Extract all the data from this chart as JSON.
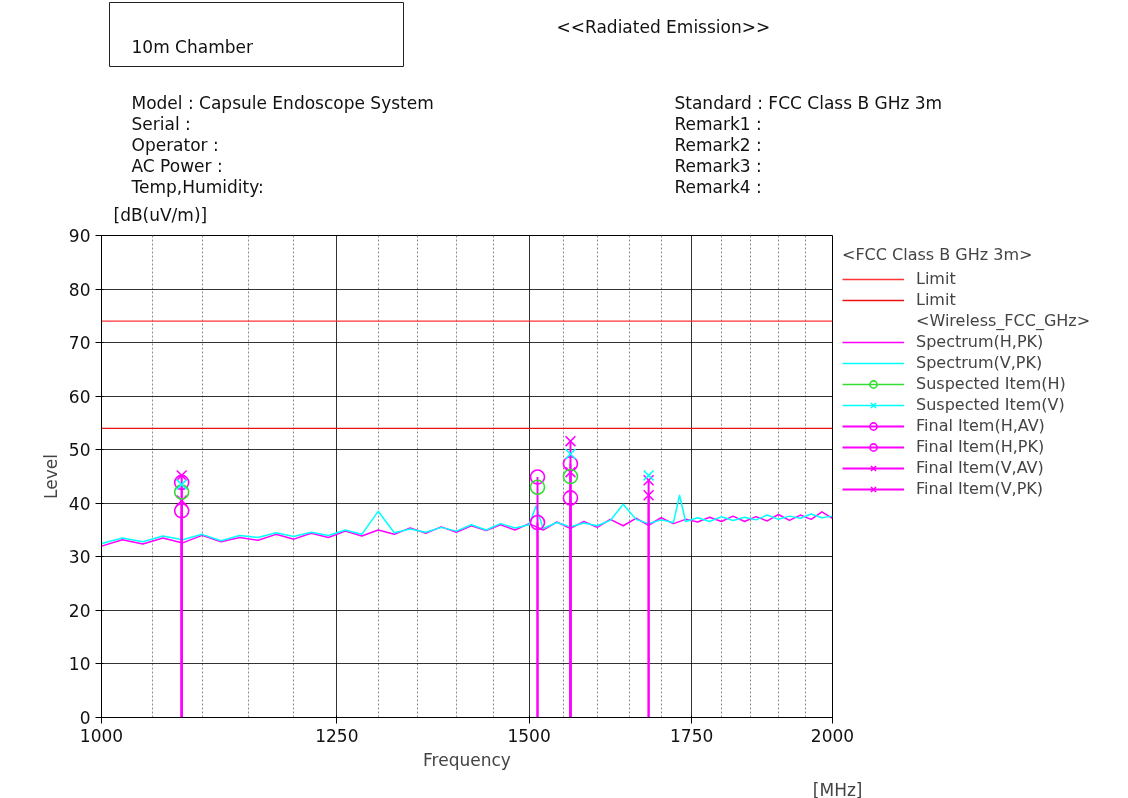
{
  "chart_data": {
    "type": "line",
    "title": "<<Radiated Emission>>",
    "xlabel": "Frequency",
    "ylabel": "Level",
    "legend_title": "<FCC Class B GHz 3m>",
    "annotations": [
      "10m Chamber",
      "Model        : Capsule Endoscope System",
      "Serial         :",
      "Operator      :",
      "AC Power     :",
      "Temp,Humidity:",
      "Standard     : FCC Class B GHz 3m",
      "Remark1       :",
      "Remark2       :",
      "Remark3       :",
      "Remark4       :",
      "[dB(uV/m)]",
      "[MHz]",
      "<Wireless_FCC_GHz>"
    ],
    "log": "x",
    "xlim": [
      1000,
      2000
    ],
    "ylim": [
      0,
      90
    ],
    "xticks": [
      1000,
      {
        "value": 1050,
        "label": null
      },
      {
        "value": 1100,
        "label": null
      },
      {
        "value": 1150,
        "label": null
      },
      {
        "value": 1200,
        "label": null
      },
      1250,
      {
        "value": 1300,
        "label": null
      },
      {
        "value": 1350,
        "label": null
      },
      {
        "value": 1400,
        "label": null
      },
      {
        "value": 1450,
        "label": null
      },
      1500,
      {
        "value": 1550,
        "label": null
      },
      {
        "value": 1600,
        "label": null
      },
      {
        "value": 1650,
        "label": null
      },
      {
        "value": 1700,
        "label": null
      },
      1750,
      {
        "value": 1800,
        "label": null
      },
      {
        "value": 1850,
        "label": null
      },
      {
        "value": 1900,
        "label": null
      },
      {
        "value": 1950,
        "label": null
      },
      2000
    ],
    "yticks": [
      0,
      10,
      20,
      30,
      40,
      50,
      60,
      70,
      80,
      90
    ],
    "grid": true,
    "legend": "right",
    "ref_lines": [
      {
        "axis": "y",
        "value": 74,
        "label": "Limit",
        "color": "#ff3333"
      },
      {
        "axis": "y",
        "value": 54,
        "label": "Limit",
        "color": "#ee1111"
      }
    ],
    "series": [
      {
        "name": "Spectrum(H,PK)",
        "type": "line",
        "color": "#ff00ff",
        "x": [
          1000,
          1020,
          1040,
          1060,
          1080,
          1100,
          1120,
          1140,
          1160,
          1180,
          1200,
          1220,
          1240,
          1260,
          1280,
          1300,
          1320,
          1340,
          1360,
          1380,
          1400,
          1420,
          1440,
          1460,
          1480,
          1500,
          1520,
          1540,
          1560,
          1580,
          1600,
          1620,
          1640,
          1660,
          1680,
          1700,
          1720,
          1740,
          1760,
          1780,
          1800,
          1820,
          1840,
          1860,
          1880,
          1900,
          1920,
          1940,
          1960,
          1980,
          2000
        ],
        "values": [
          32.0,
          33.2,
          32.4,
          33.5,
          32.6,
          34.0,
          32.8,
          33.6,
          33.1,
          34.2,
          33.3,
          34.4,
          33.6,
          34.8,
          33.9,
          35.0,
          34.2,
          35.4,
          34.4,
          35.6,
          34.6,
          35.8,
          34.9,
          36.0,
          35.0,
          36.2,
          35.0,
          36.5,
          35.3,
          36.6,
          35.5,
          37.0,
          35.8,
          37.2,
          35.9,
          37.3,
          36.2,
          37.0,
          36.5,
          37.4,
          36.6,
          37.6,
          36.6,
          37.5,
          36.7,
          37.9,
          36.8,
          37.8,
          37.0,
          38.4,
          37.2
        ]
      },
      {
        "name": "Spectrum(V,PK)",
        "type": "line",
        "color": "#00ffff",
        "x": [
          1000,
          1020,
          1040,
          1060,
          1080,
          1100,
          1120,
          1140,
          1160,
          1180,
          1200,
          1220,
          1240,
          1260,
          1280,
          1300,
          1320,
          1340,
          1360,
          1380,
          1400,
          1420,
          1440,
          1460,
          1480,
          1500,
          1510,
          1520,
          1540,
          1560,
          1580,
          1600,
          1620,
          1640,
          1660,
          1680,
          1700,
          1720,
          1730,
          1740,
          1760,
          1780,
          1800,
          1820,
          1840,
          1860,
          1880,
          1900,
          1920,
          1940,
          1960,
          1980,
          2000
        ],
        "values": [
          32.5,
          33.5,
          32.8,
          33.9,
          33.2,
          34.2,
          33.0,
          34.0,
          33.6,
          34.5,
          33.8,
          34.6,
          34.0,
          35.0,
          34.2,
          38.5,
          34.5,
          35.2,
          34.6,
          35.5,
          34.8,
          36.0,
          35.0,
          36.2,
          35.4,
          36.0,
          39.5,
          35.3,
          36.4,
          35.6,
          36.3,
          35.8,
          36.8,
          39.8,
          37.0,
          36.2,
          36.9,
          36.4,
          41.5,
          36.6,
          37.3,
          36.6,
          37.5,
          36.8,
          37.4,
          36.9,
          37.8,
          37.0,
          37.6,
          37.2,
          38.0,
          37.3,
          37.6
        ]
      },
      {
        "name": "Suspected Item(H)",
        "type": "scatter",
        "marker": "circle",
        "color": "#33dd33",
        "x": [
          1079,
          1512,
          1560
        ],
        "values": [
          42.1,
          43.0,
          45.0
        ]
      },
      {
        "name": "Suspected Item(V)",
        "type": "scatter",
        "marker": "cross",
        "color": "#00ffff",
        "x": [
          1079,
          1560,
          1680
        ],
        "values": [
          43.5,
          49.2,
          45.2
        ]
      },
      {
        "name": "Final Item(H,AV)",
        "type": "lollipop",
        "marker": "circle",
        "color": "#ff00ff",
        "x": [
          1079,
          1512,
          1560
        ],
        "values": [
          38.6,
          36.4,
          41.0
        ]
      },
      {
        "name": "Final Item(H,PK)",
        "type": "lollipop",
        "marker": "circle",
        "color": "#ff00ff",
        "x": [
          1079,
          1512,
          1560
        ],
        "values": [
          43.9,
          44.9,
          47.4
        ]
      },
      {
        "name": "Final Item(V,AV)",
        "type": "lollipop",
        "marker": "cross",
        "color": "#ff00ff",
        "x": [
          1079,
          1560,
          1680
        ],
        "values": [
          40.5,
          45.8,
          41.5
        ]
      },
      {
        "name": "Final Item(V,PK)",
        "type": "lollipop",
        "marker": "cross",
        "color": "#ff00ff",
        "x": [
          1079,
          1560,
          1680
        ],
        "values": [
          45.2,
          51.6,
          44.3
        ]
      }
    ]
  }
}
